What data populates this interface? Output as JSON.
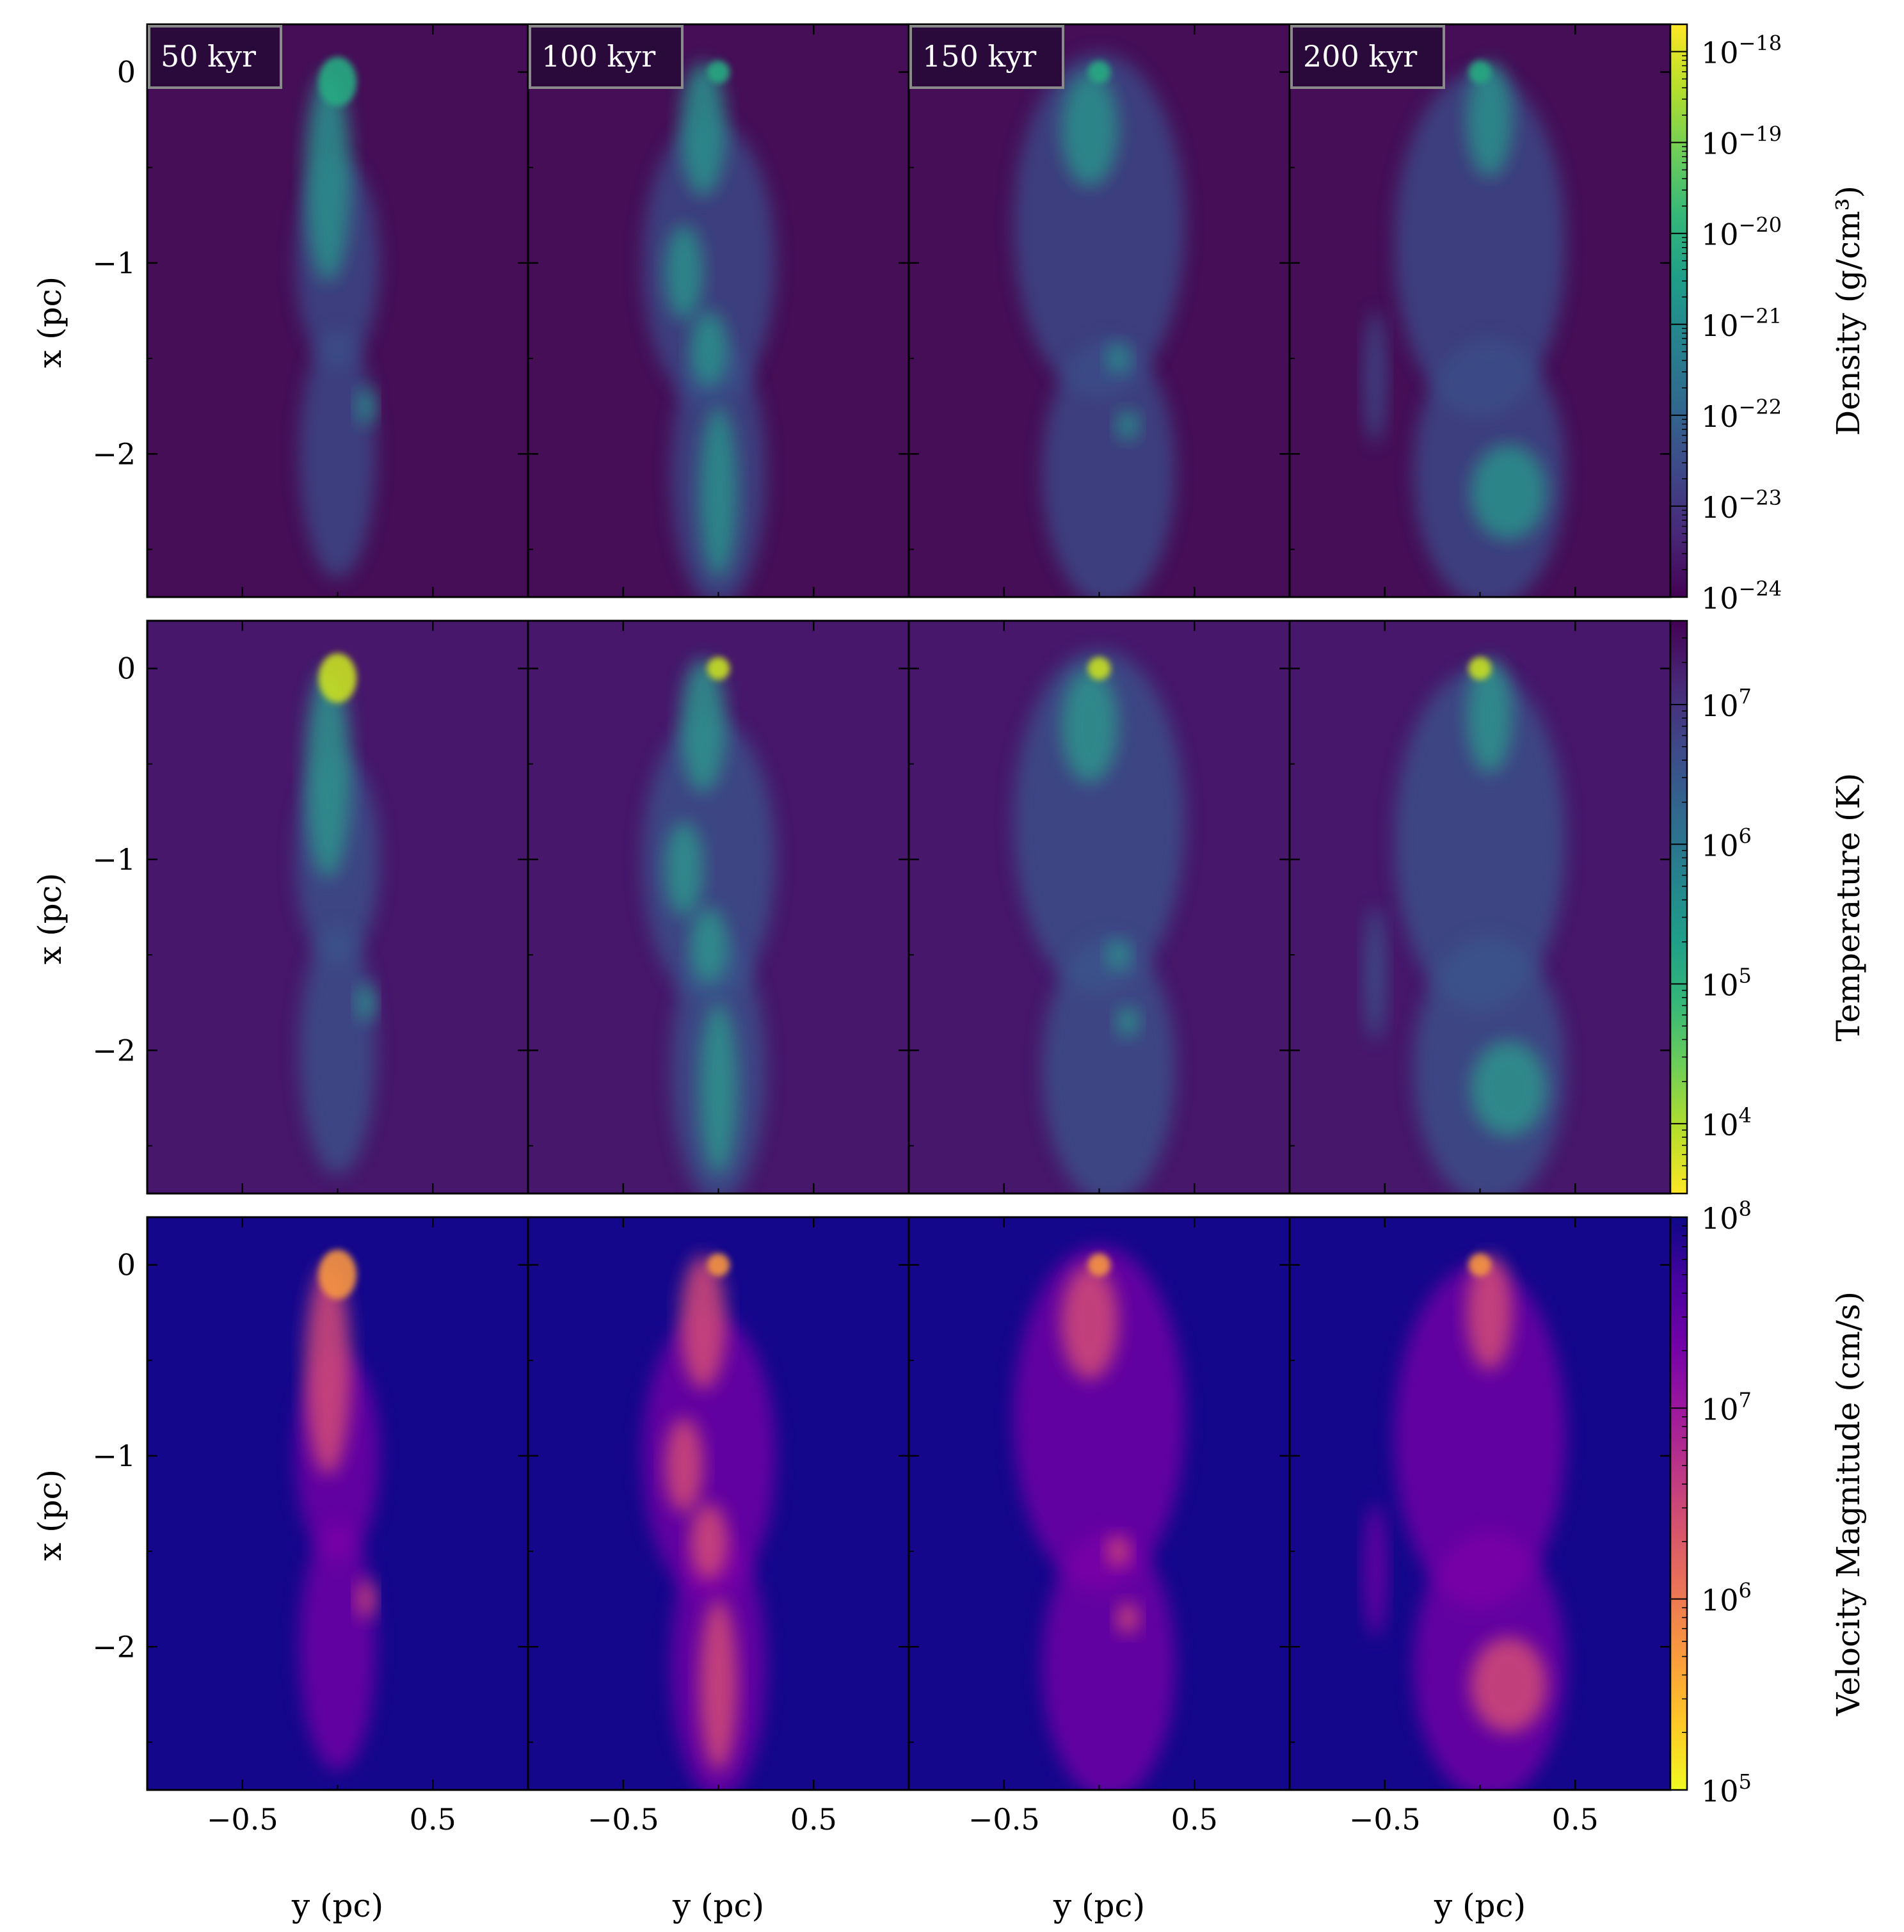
{
  "chart_data": {
    "type": "heatmap",
    "title": "",
    "panel_grid": {
      "rows": 3,
      "cols": 4,
      "shared_x": true,
      "shared_y": true
    },
    "time_labels": [
      "50 kyr",
      "100 kyr",
      "150 kyr",
      "200 kyr"
    ],
    "xlabel": "y  (pc)",
    "ylabel": "x  (pc)",
    "xlim": [
      -1.0,
      1.0
    ],
    "ylim": [
      -2.75,
      0.25
    ],
    "x_ticks": [
      -0.5,
      0.5
    ],
    "x_tick_labels": [
      "−0.5",
      "0.5"
    ],
    "y_ticks": [
      0,
      -1,
      -2
    ],
    "y_tick_labels": [
      "0",
      "−1",
      "−2"
    ],
    "rows": [
      {
        "quantity": "density",
        "colorbar_label": "Density",
        "colorbar_unit": "(g/cm³)",
        "colormap": "viridis",
        "colorbar_range": [
          1e-24,
          2e-18
        ],
        "colorbar_scale": "log",
        "colorbar_ticks": [
          {
            "exp": -24,
            "label": "10",
            "sup": "−24"
          },
          {
            "exp": -23,
            "label": "10",
            "sup": "−23"
          },
          {
            "exp": -22,
            "label": "10",
            "sup": "−22"
          },
          {
            "exp": -21,
            "label": "10",
            "sup": "−21"
          },
          {
            "exp": -20,
            "label": "10",
            "sup": "−20"
          },
          {
            "exp": -19,
            "label": "10",
            "sup": "−19"
          },
          {
            "exp": -18,
            "label": "10",
            "sup": "−18"
          }
        ],
        "colorbar_log_range": [
          -24,
          -17.7
        ],
        "colorbar_reversed": false,
        "colors": {
          "background": "#450e57",
          "plume_outer": "#3b4f8a",
          "plume_inner": "#2a8c8a",
          "core": "#25ab82"
        }
      },
      {
        "quantity": "temperature",
        "colorbar_label": "Temperature  (K)",
        "colorbar_unit": "",
        "colormap": "viridis_r",
        "colorbar_range": [
          3000,
          40000000
        ],
        "colorbar_scale": "log",
        "colorbar_ticks": [
          {
            "exp": 4,
            "label": "10",
            "sup": "4"
          },
          {
            "exp": 5,
            "label": "10",
            "sup": "5"
          },
          {
            "exp": 6,
            "label": "10",
            "sup": "6"
          },
          {
            "exp": 7,
            "label": "10",
            "sup": "7"
          }
        ],
        "colorbar_log_range": [
          3.5,
          7.6
        ],
        "colorbar_reversed": true,
        "colors": {
          "background": "#46176b",
          "plume_outer": "#3a548c",
          "plume_inner": "#2f8f8b",
          "core": "#c8e020"
        }
      },
      {
        "quantity": "velocity",
        "colorbar_label": "Velocity Magnitude  (cm/s)",
        "colorbar_unit": "",
        "colormap": "plasma_r",
        "colorbar_range": [
          100000,
          100000000
        ],
        "colorbar_scale": "log",
        "colorbar_ticks": [
          {
            "exp": 5,
            "label": "10",
            "sup": "5"
          },
          {
            "exp": 6,
            "label": "10",
            "sup": "6"
          },
          {
            "exp": 7,
            "label": "10",
            "sup": "7"
          },
          {
            "exp": 8,
            "label": "10",
            "sup": "8"
          }
        ],
        "colorbar_log_range": [
          5,
          8
        ],
        "colorbar_reversed": true,
        "colors": {
          "background": "#14078c",
          "plume_outer": "#7d03a8",
          "plume_inner": "#cc4778",
          "core": "#f89540"
        }
      }
    ]
  }
}
